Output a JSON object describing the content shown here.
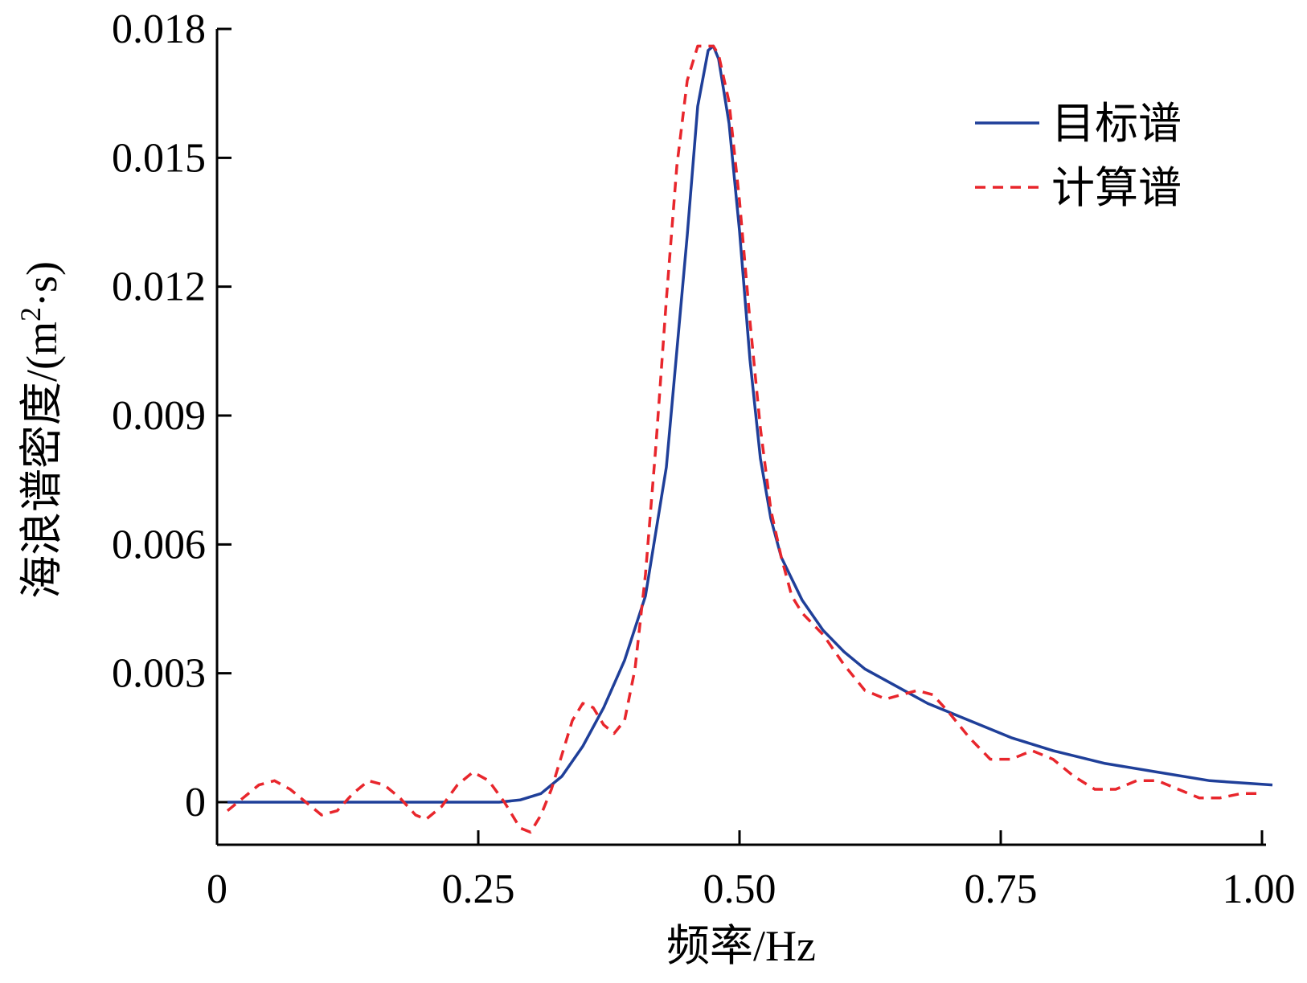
{
  "chart_data": {
    "type": "line",
    "xlabel": "频率/Hz",
    "ylabel_main": "海浪谱密度/(m",
    "ylabel_sup": "2",
    "ylabel_end": "·s)",
    "xlim": [
      0,
      1.0
    ],
    "ylim": [
      -0.0011,
      0.018
    ],
    "x_ticks": [
      0,
      0.25,
      0.5,
      0.75,
      1.0
    ],
    "x_tick_labels": [
      "0",
      "0.25",
      "0.50",
      "0.75",
      "1.00"
    ],
    "y_ticks": [
      0,
      0.003,
      0.006,
      0.009,
      0.012,
      0.015,
      0.018
    ],
    "y_tick_labels": [
      "0",
      "0.003",
      "0.006",
      "0.009",
      "0.012",
      "0.015",
      "0.018"
    ],
    "grid": false,
    "legend_position": "top-right",
    "series": [
      {
        "name": "目标谱",
        "color": "#1f3f99",
        "style": "solid",
        "x": [
          0.01,
          0.1,
          0.2,
          0.27,
          0.29,
          0.31,
          0.33,
          0.35,
          0.37,
          0.39,
          0.41,
          0.43,
          0.45,
          0.46,
          0.47,
          0.475,
          0.48,
          0.49,
          0.5,
          0.51,
          0.52,
          0.53,
          0.54,
          0.56,
          0.58,
          0.6,
          0.62,
          0.65,
          0.68,
          0.7,
          0.73,
          0.76,
          0.8,
          0.85,
          0.9,
          0.95,
          1.01
        ],
        "y": [
          0,
          0,
          0,
          0,
          5e-05,
          0.0002,
          0.0006,
          0.0013,
          0.0022,
          0.0033,
          0.0048,
          0.0078,
          0.0132,
          0.0162,
          0.0175,
          0.0176,
          0.0173,
          0.0158,
          0.0133,
          0.0103,
          0.008,
          0.0066,
          0.0057,
          0.0047,
          0.004,
          0.0035,
          0.0031,
          0.0027,
          0.0023,
          0.0021,
          0.0018,
          0.0015,
          0.0012,
          0.0009,
          0.0007,
          0.0005,
          0.0004
        ]
      },
      {
        "name": "计算谱",
        "color": "#e8262c",
        "style": "dashed",
        "x": [
          0.01,
          0.025,
          0.04,
          0.055,
          0.07,
          0.085,
          0.1,
          0.115,
          0.13,
          0.145,
          0.16,
          0.175,
          0.19,
          0.2,
          0.215,
          0.23,
          0.245,
          0.26,
          0.275,
          0.29,
          0.3,
          0.31,
          0.32,
          0.33,
          0.34,
          0.35,
          0.36,
          0.37,
          0.38,
          0.39,
          0.4,
          0.41,
          0.42,
          0.43,
          0.44,
          0.45,
          0.46,
          0.47,
          0.475,
          0.48,
          0.49,
          0.5,
          0.51,
          0.52,
          0.53,
          0.54,
          0.55,
          0.56,
          0.58,
          0.6,
          0.62,
          0.64,
          0.655,
          0.67,
          0.685,
          0.7,
          0.72,
          0.74,
          0.76,
          0.78,
          0.8,
          0.82,
          0.84,
          0.86,
          0.88,
          0.9,
          0.92,
          0.94,
          0.96,
          0.98,
          1.0
        ],
        "y": [
          -0.0002,
          0.0001,
          0.0004,
          0.0005,
          0.0003,
          0.0,
          -0.0003,
          -0.0002,
          0.0002,
          0.0005,
          0.0004,
          0.0001,
          -0.0003,
          -0.0004,
          -0.0001,
          0.0004,
          0.0007,
          0.0005,
          0.0,
          -0.0006,
          -0.0007,
          -0.0003,
          0.0003,
          0.0011,
          0.0019,
          0.0023,
          0.0022,
          0.0018,
          0.0016,
          0.0019,
          0.0031,
          0.0053,
          0.0083,
          0.0117,
          0.0148,
          0.0168,
          0.0176,
          0.0176,
          0.0176,
          0.0174,
          0.0163,
          0.014,
          0.0112,
          0.0087,
          0.0068,
          0.0057,
          0.0048,
          0.0044,
          0.0039,
          0.0032,
          0.0026,
          0.0024,
          0.0025,
          0.0026,
          0.0025,
          0.0021,
          0.0015,
          0.001,
          0.001,
          0.0012,
          0.001,
          0.0006,
          0.0003,
          0.0003,
          0.0005,
          0.0005,
          0.0003,
          0.0001,
          0.0001,
          0.0002,
          0.0002
        ]
      }
    ]
  }
}
